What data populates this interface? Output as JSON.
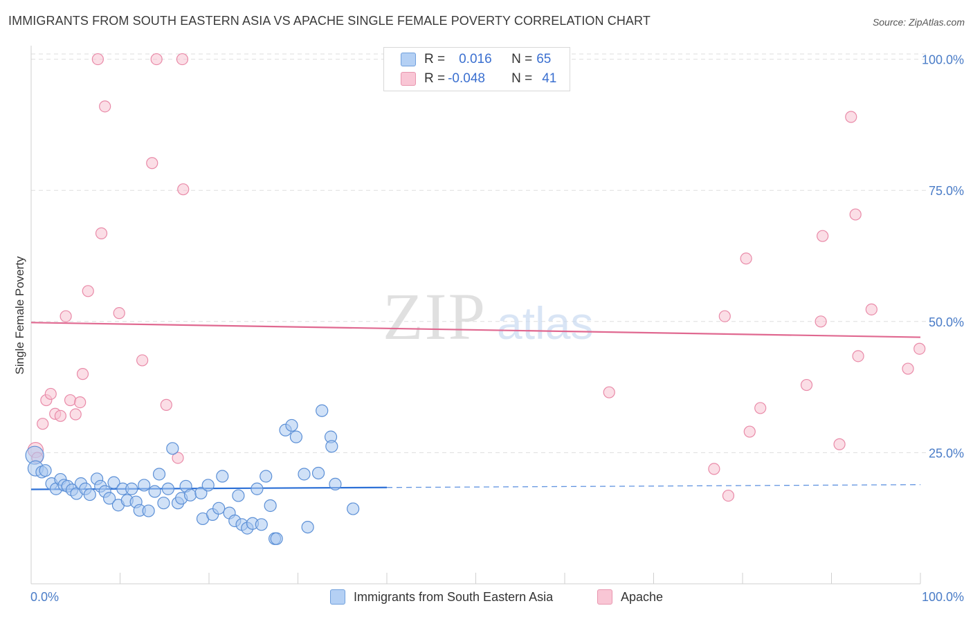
{
  "title": "IMMIGRANTS FROM SOUTH EASTERN ASIA VS APACHE SINGLE FEMALE POVERTY CORRELATION CHART",
  "source": "Source: ZipAtlas.com",
  "watermark": {
    "zip": "ZIP",
    "atlas": "atlas"
  },
  "legend": {
    "row1": {
      "r_label": "R = ",
      "r_value": "0.016",
      "n_label": "N = ",
      "n_value": "65"
    },
    "row2": {
      "r_label": "R = ",
      "r_value": "-0.048",
      "n_label": "N = ",
      "n_value": "41"
    }
  },
  "bottom_legend": {
    "series1": "Immigrants from South Eastern Asia",
    "series2": "Apache"
  },
  "colors": {
    "blue_fill": "#a9c8f0",
    "blue_stroke": "#5b8fd6",
    "blue_line": "#2b6fd6",
    "pink_fill": "#f7c3d2",
    "pink_stroke": "#e98aa8",
    "pink_line": "#e06890",
    "tick_text": "#4a7cc7"
  },
  "chart_data": {
    "type": "scatter",
    "title": "IMMIGRANTS FROM SOUTH EASTERN ASIA VS APACHE SINGLE FEMALE POVERTY CORRELATION CHART",
    "xlabel": "",
    "ylabel": "Single Female Poverty",
    "xlim": [
      0,
      100
    ],
    "ylim": [
      0,
      101
    ],
    "x_tick_labels": [
      "0.0%",
      "100.0%"
    ],
    "y_ticks": [
      25,
      50,
      75,
      100
    ],
    "y_tick_labels": [
      "25.0%",
      "50.0%",
      "75.0%",
      "100.0%"
    ],
    "grid": true,
    "legend_position": "top-center",
    "series": [
      {
        "name": "Immigrants from South Eastern Asia",
        "r": 0.016,
        "n": 65,
        "trend": {
          "x": [
            0,
            100
          ],
          "y": [
            18.0,
            18.9
          ],
          "solid_until_x": 40
        },
        "points": [
          [
            0.4,
            24.5
          ],
          [
            0.5,
            22
          ],
          [
            1.2,
            21.3
          ],
          [
            1.6,
            21.6
          ],
          [
            2.3,
            19.1
          ],
          [
            2.8,
            18.1
          ],
          [
            3.3,
            19.9
          ],
          [
            3.7,
            18.8
          ],
          [
            4.1,
            18.6
          ],
          [
            4.6,
            17.9
          ],
          [
            5.1,
            17.2
          ],
          [
            5.6,
            19.1
          ],
          [
            6.1,
            18.1
          ],
          [
            6.6,
            17
          ],
          [
            7.4,
            20
          ],
          [
            7.8,
            18.6
          ],
          [
            8.3,
            17.6
          ],
          [
            8.8,
            16.3
          ],
          [
            9.3,
            19.3
          ],
          [
            9.8,
            15
          ],
          [
            10.3,
            18.1
          ],
          [
            10.8,
            15.9
          ],
          [
            11.3,
            18.1
          ],
          [
            11.8,
            15.6
          ],
          [
            12.2,
            14
          ],
          [
            12.7,
            18.8
          ],
          [
            13.2,
            13.9
          ],
          [
            13.9,
            17.6
          ],
          [
            14.4,
            20.9
          ],
          [
            14.9,
            15.4
          ],
          [
            15.4,
            18.1
          ],
          [
            15.9,
            25.8
          ],
          [
            16.5,
            15.4
          ],
          [
            16.9,
            16.3
          ],
          [
            17.4,
            18.6
          ],
          [
            17.9,
            16.9
          ],
          [
            19.1,
            17.3
          ],
          [
            19.3,
            12.4
          ],
          [
            19.9,
            18.8
          ],
          [
            20.4,
            13.2
          ],
          [
            21.1,
            14.4
          ],
          [
            21.5,
            20.5
          ],
          [
            22.3,
            13.5
          ],
          [
            22.9,
            12
          ],
          [
            23.3,
            16.8
          ],
          [
            23.7,
            11.3
          ],
          [
            24.3,
            10.6
          ],
          [
            24.9,
            11.5
          ],
          [
            25.4,
            18.1
          ],
          [
            25.9,
            11.3
          ],
          [
            26.4,
            20.5
          ],
          [
            26.9,
            14.9
          ],
          [
            27.4,
            8.6
          ],
          [
            27.6,
            8.6
          ],
          [
            28.6,
            29.3
          ],
          [
            29.3,
            30.2
          ],
          [
            29.8,
            28
          ],
          [
            30.7,
            20.9
          ],
          [
            31.1,
            10.8
          ],
          [
            32.3,
            21.1
          ],
          [
            32.7,
            33
          ],
          [
            33.7,
            28
          ],
          [
            33.8,
            26.2
          ],
          [
            34.2,
            19
          ],
          [
            36.2,
            14.3
          ]
        ]
      },
      {
        "name": "Apache",
        "r": -0.048,
        "n": 41,
        "trend": {
          "x": [
            0,
            100
          ],
          "y": [
            49.8,
            47.0
          ]
        },
        "points": [
          [
            0.5,
            25.5
          ],
          [
            0.7,
            24
          ],
          [
            1.3,
            30.5
          ],
          [
            1.7,
            35
          ],
          [
            2.2,
            36.2
          ],
          [
            2.7,
            32.4
          ],
          [
            3.3,
            32
          ],
          [
            3.9,
            51
          ],
          [
            4.4,
            35
          ],
          [
            5.0,
            32.3
          ],
          [
            5.5,
            34.6
          ],
          [
            5.8,
            40
          ],
          [
            6.4,
            55.8
          ],
          [
            7.5,
            100
          ],
          [
            8.3,
            91
          ],
          [
            7.9,
            66.8
          ],
          [
            9.9,
            51.6
          ],
          [
            12.5,
            42.6
          ],
          [
            13.6,
            80.2
          ],
          [
            14.1,
            100
          ],
          [
            15.2,
            34.1
          ],
          [
            16.5,
            24
          ],
          [
            17.0,
            100
          ],
          [
            17.1,
            75.2
          ],
          [
            65.0,
            36.5
          ],
          [
            76.8,
            21.9
          ],
          [
            78.0,
            51
          ],
          [
            78.4,
            16.8
          ],
          [
            80.4,
            62
          ],
          [
            80.8,
            29
          ],
          [
            82.0,
            33.5
          ],
          [
            87.2,
            37.9
          ],
          [
            88.8,
            50
          ],
          [
            89.0,
            66.3
          ],
          [
            90.9,
            26.6
          ],
          [
            92.2,
            89
          ],
          [
            92.7,
            70.4
          ],
          [
            93.0,
            43.4
          ],
          [
            94.5,
            52.3
          ],
          [
            98.6,
            41
          ],
          [
            99.9,
            44.8
          ]
        ]
      }
    ]
  }
}
